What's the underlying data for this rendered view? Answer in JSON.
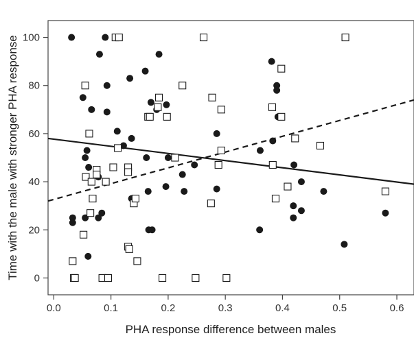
{
  "chart_data": {
    "type": "scatter",
    "title": "",
    "xlabel": "PHA response difference between males",
    "ylabel": "Time with the male with stronger PHA response",
    "xlim": [
      -0.01,
      0.63
    ],
    "ylim": [
      -7,
      107
    ],
    "xticks": [
      0.0,
      0.1,
      0.2,
      0.3,
      0.4,
      0.5,
      0.6
    ],
    "xtick_labels": [
      "0.0",
      "0.1",
      "0.2",
      "0.3",
      "0.4",
      "0.5",
      "0.6"
    ],
    "yticks": [
      0,
      20,
      40,
      60,
      80,
      100
    ],
    "ytick_labels": [
      "0",
      "20",
      "40",
      "60",
      "80",
      "100"
    ],
    "grid": false,
    "legend": "none",
    "series": [
      {
        "marker": "filled-circle",
        "color": "#1a1a1a",
        "points": [
          [
            0.031,
            100
          ],
          [
            0.033,
            25
          ],
          [
            0.033,
            23
          ],
          [
            0.051,
            75
          ],
          [
            0.055,
            50
          ],
          [
            0.055,
            25
          ],
          [
            0.058,
            53
          ],
          [
            0.06,
            9
          ],
          [
            0.061,
            46
          ],
          [
            0.066,
            70
          ],
          [
            0.078,
            42
          ],
          [
            0.078,
            25
          ],
          [
            0.08,
            93
          ],
          [
            0.084,
            27
          ],
          [
            0.09,
            100
          ],
          [
            0.093,
            80
          ],
          [
            0.093,
            69
          ],
          [
            0.111,
            61
          ],
          [
            0.122,
            55
          ],
          [
            0.133,
            83
          ],
          [
            0.136,
            58
          ],
          [
            0.136,
            33
          ],
          [
            0.14,
            33
          ],
          [
            0.16,
            86
          ],
          [
            0.162,
            50
          ],
          [
            0.165,
            36
          ],
          [
            0.166,
            20
          ],
          [
            0.17,
            73
          ],
          [
            0.172,
            20
          ],
          [
            0.18,
            70
          ],
          [
            0.184,
            93
          ],
          [
            0.196,
            38
          ],
          [
            0.197,
            72
          ],
          [
            0.2,
            50
          ],
          [
            0.225,
            43
          ],
          [
            0.228,
            36
          ],
          [
            0.246,
            47
          ],
          [
            0.285,
            60
          ],
          [
            0.285,
            37
          ],
          [
            0.36,
            20
          ],
          [
            0.361,
            53
          ],
          [
            0.381,
            90
          ],
          [
            0.383,
            57
          ],
          [
            0.39,
            80
          ],
          [
            0.39,
            78
          ],
          [
            0.392,
            67
          ],
          [
            0.419,
            30
          ],
          [
            0.419,
            25
          ],
          [
            0.42,
            47
          ],
          [
            0.433,
            40
          ],
          [
            0.433,
            28
          ],
          [
            0.472,
            36
          ],
          [
            0.508,
            14
          ],
          [
            0.58,
            27
          ]
        ]
      },
      {
        "marker": "open-square",
        "color": "#1a1a1a",
        "points": [
          [
            0.033,
            7
          ],
          [
            0.035,
            0
          ],
          [
            0.037,
            0
          ],
          [
            0.052,
            18
          ],
          [
            0.055,
            80
          ],
          [
            0.056,
            42
          ],
          [
            0.062,
            60
          ],
          [
            0.064,
            27
          ],
          [
            0.066,
            40
          ],
          [
            0.068,
            33
          ],
          [
            0.075,
            45
          ],
          [
            0.075,
            43
          ],
          [
            0.085,
            0
          ],
          [
            0.091,
            40
          ],
          [
            0.095,
            0
          ],
          [
            0.104,
            46
          ],
          [
            0.108,
            100
          ],
          [
            0.112,
            54
          ],
          [
            0.114,
            100
          ],
          [
            0.13,
            46
          ],
          [
            0.13,
            44
          ],
          [
            0.13,
            13
          ],
          [
            0.132,
            12
          ],
          [
            0.14,
            31
          ],
          [
            0.143,
            33
          ],
          [
            0.146,
            7
          ],
          [
            0.165,
            67
          ],
          [
            0.168,
            67
          ],
          [
            0.182,
            71
          ],
          [
            0.184,
            75
          ],
          [
            0.19,
            0
          ],
          [
            0.198,
            67
          ],
          [
            0.212,
            50
          ],
          [
            0.225,
            80
          ],
          [
            0.248,
            0
          ],
          [
            0.262,
            100
          ],
          [
            0.275,
            31
          ],
          [
            0.277,
            75
          ],
          [
            0.288,
            47
          ],
          [
            0.293,
            70
          ],
          [
            0.293,
            53
          ],
          [
            0.302,
            0
          ],
          [
            0.382,
            71
          ],
          [
            0.383,
            47
          ],
          [
            0.388,
            33
          ],
          [
            0.398,
            67
          ],
          [
            0.398,
            87
          ],
          [
            0.409,
            38
          ],
          [
            0.422,
            58
          ],
          [
            0.466,
            55
          ],
          [
            0.51,
            100
          ],
          [
            0.58,
            36
          ]
        ]
      }
    ],
    "trend_lines": [
      {
        "style": "solid",
        "color": "#1a1a1a",
        "from": [
          -0.01,
          58
        ],
        "to": [
          0.63,
          39
        ]
      },
      {
        "style": "dashed",
        "color": "#1a1a1a",
        "from": [
          -0.01,
          32
        ],
        "to": [
          0.63,
          74
        ]
      }
    ]
  }
}
